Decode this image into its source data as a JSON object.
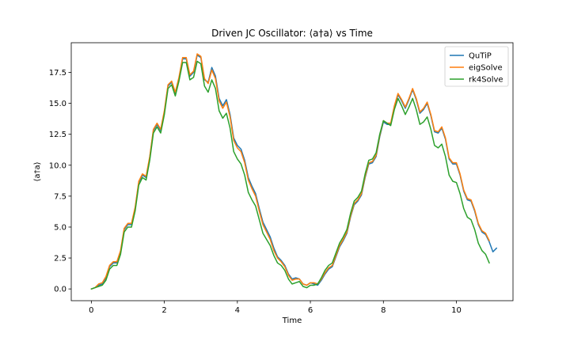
{
  "chart_data": {
    "type": "line",
    "title": "Driven JC Oscillator: ⟨a†a⟩ vs Time",
    "xlabel": "Time",
    "ylabel": "⟨a†a⟩",
    "xlim": [
      -0.55,
      11.55
    ],
    "ylim": [
      -0.95,
      19.9
    ],
    "xticks": [
      0,
      2,
      4,
      6,
      8,
      10
    ],
    "yticks": [
      0.0,
      2.5,
      5.0,
      7.5,
      10.0,
      12.5,
      15.0,
      17.5
    ],
    "xtick_labels": [
      "0",
      "2",
      "4",
      "6",
      "8",
      "10"
    ],
    "ytick_labels": [
      "0.0",
      "2.5",
      "5.0",
      "7.5",
      "10.0",
      "12.5",
      "15.0",
      "17.5"
    ],
    "grid": false,
    "legend_position": "top-right",
    "series": [
      {
        "name": "QuTiP",
        "color": "#1f77b4",
        "x": [
          0,
          0.1,
          0.2,
          0.3,
          0.4,
          0.5,
          0.6,
          0.7,
          0.8,
          0.9,
          1.0,
          1.1,
          1.2,
          1.3,
          1.4,
          1.5,
          1.6,
          1.7,
          1.8,
          1.9,
          2.0,
          2.1,
          2.2,
          2.3,
          2.4,
          2.5,
          2.6,
          2.7,
          2.8,
          2.9,
          3.0,
          3.1,
          3.2,
          3.3,
          3.4,
          3.5,
          3.6,
          3.7,
          3.8,
          3.9,
          4.0,
          4.1,
          4.2,
          4.3,
          4.4,
          4.5,
          4.6,
          4.7,
          4.8,
          4.9,
          5.0,
          5.1,
          5.2,
          5.3,
          5.4,
          5.5,
          5.6,
          5.7,
          5.8,
          5.9,
          6.0,
          6.1,
          6.2,
          6.3,
          6.4,
          6.5,
          6.6,
          6.7,
          6.8,
          6.9,
          7.0,
          7.1,
          7.2,
          7.3,
          7.4,
          7.5,
          7.6,
          7.7,
          7.8,
          7.9,
          8.0,
          8.1,
          8.2,
          8.3,
          8.4,
          8.5,
          8.6,
          8.7,
          8.8,
          8.9,
          9.0,
          9.1,
          9.2,
          9.3,
          9.4,
          9.5,
          9.6,
          9.7,
          9.8,
          9.9,
          10.0,
          10.1,
          10.2,
          10.3,
          10.4,
          10.5,
          10.6,
          10.7,
          10.8,
          10.9,
          11.0,
          11.1
        ],
        "y": [
          0.0,
          0.1,
          0.3,
          0.4,
          0.9,
          1.8,
          2.1,
          2.1,
          3.0,
          4.8,
          5.2,
          5.2,
          6.5,
          8.6,
          9.2,
          9.0,
          10.6,
          12.8,
          13.3,
          12.8,
          14.3,
          16.4,
          16.7,
          15.8,
          17.0,
          18.6,
          18.6,
          17.2,
          17.5,
          18.9,
          18.7,
          16.9,
          16.7,
          17.9,
          17.2,
          15.4,
          14.8,
          15.3,
          14.1,
          12.2,
          11.6,
          11.3,
          10.4,
          9.0,
          8.3,
          7.7,
          6.5,
          5.4,
          4.8,
          4.2,
          3.3,
          2.6,
          2.3,
          1.9,
          1.2,
          0.8,
          0.9,
          0.8,
          0.4,
          0.3,
          0.5,
          0.4,
          0.3,
          0.7,
          1.2,
          1.6,
          1.8,
          2.6,
          3.4,
          3.9,
          4.5,
          5.8,
          6.8,
          7.1,
          7.6,
          9.0,
          10.1,
          10.2,
          10.7,
          12.3,
          13.5,
          13.3,
          13.3,
          14.7,
          15.7,
          15.2,
          14.6,
          15.3,
          16.1,
          15.3,
          14.2,
          14.5,
          15.0,
          14.0,
          12.7,
          12.6,
          13.0,
          12.1,
          10.5,
          10.1,
          10.1,
          9.2,
          7.9,
          7.2,
          7.1,
          6.3,
          5.2,
          4.6,
          4.4,
          3.8,
          3.0,
          3.3
        ]
      },
      {
        "name": "eigSolve",
        "color": "#ff7f0e",
        "x": [
          0,
          0.1,
          0.2,
          0.3,
          0.4,
          0.5,
          0.6,
          0.7,
          0.8,
          0.9,
          1.0,
          1.1,
          1.2,
          1.3,
          1.4,
          1.5,
          1.6,
          1.7,
          1.8,
          1.9,
          2.0,
          2.1,
          2.2,
          2.3,
          2.4,
          2.5,
          2.6,
          2.7,
          2.8,
          2.9,
          3.0,
          3.1,
          3.2,
          3.3,
          3.4,
          3.5,
          3.6,
          3.7,
          3.8,
          3.9,
          4.0,
          4.1,
          4.2,
          4.3,
          4.4,
          4.5,
          4.6,
          4.7,
          4.8,
          4.9,
          5.0,
          5.1,
          5.2,
          5.3,
          5.4,
          5.5,
          5.6,
          5.7,
          5.8,
          5.9,
          6.0,
          6.1,
          6.2,
          6.3,
          6.4,
          6.5,
          6.6,
          6.7,
          6.8,
          6.9,
          7.0,
          7.1,
          7.2,
          7.3,
          7.4,
          7.5,
          7.6,
          7.7,
          7.8,
          7.9,
          8.0,
          8.1,
          8.2,
          8.3,
          8.4,
          8.5,
          8.6,
          8.7,
          8.8,
          8.9,
          9.0,
          9.1,
          9.2,
          9.3,
          9.4,
          9.5,
          9.6,
          9.7,
          9.8,
          9.9,
          10.0,
          10.1,
          10.2,
          10.3,
          10.4,
          10.5,
          10.6,
          10.7,
          10.8,
          10.9
        ],
        "y": [
          0.0,
          0.1,
          0.4,
          0.5,
          1.0,
          1.9,
          2.2,
          2.2,
          3.1,
          4.9,
          5.3,
          5.3,
          6.6,
          8.7,
          9.3,
          9.1,
          10.7,
          12.9,
          13.4,
          12.9,
          14.4,
          16.5,
          16.8,
          15.9,
          17.1,
          18.7,
          18.7,
          17.3,
          17.6,
          19.0,
          18.8,
          17.0,
          16.6,
          17.7,
          17.0,
          15.2,
          14.6,
          15.1,
          13.9,
          12.0,
          11.4,
          11.1,
          10.2,
          8.8,
          8.1,
          7.5,
          6.3,
          5.2,
          4.6,
          4.0,
          3.1,
          2.5,
          2.2,
          1.8,
          1.1,
          0.7,
          0.8,
          0.8,
          0.4,
          0.3,
          0.5,
          0.5,
          0.4,
          0.8,
          1.3,
          1.7,
          1.9,
          2.7,
          3.5,
          4.0,
          4.6,
          5.9,
          6.9,
          7.2,
          7.7,
          9.1,
          10.2,
          10.3,
          10.8,
          12.4,
          13.6,
          13.4,
          13.4,
          14.8,
          15.8,
          15.3,
          14.7,
          15.4,
          16.2,
          15.4,
          14.3,
          14.6,
          15.1,
          14.1,
          12.8,
          12.7,
          13.1,
          12.2,
          10.6,
          10.2,
          10.2,
          9.3,
          8.0,
          7.3,
          7.2,
          6.4,
          5.3,
          4.7,
          4.5,
          3.9
        ]
      },
      {
        "name": "rk4Solve",
        "color": "#2ca02c",
        "x": [
          0,
          0.1,
          0.2,
          0.3,
          0.4,
          0.5,
          0.6,
          0.7,
          0.8,
          0.9,
          1.0,
          1.1,
          1.2,
          1.3,
          1.4,
          1.5,
          1.6,
          1.7,
          1.8,
          1.9,
          2.0,
          2.1,
          2.2,
          2.3,
          2.4,
          2.5,
          2.6,
          2.7,
          2.8,
          2.9,
          3.0,
          3.1,
          3.2,
          3.3,
          3.4,
          3.5,
          3.6,
          3.7,
          3.8,
          3.9,
          4.0,
          4.1,
          4.2,
          4.3,
          4.4,
          4.5,
          4.6,
          4.7,
          4.8,
          4.9,
          5.0,
          5.1,
          5.2,
          5.3,
          5.4,
          5.5,
          5.6,
          5.7,
          5.8,
          5.9,
          6.0,
          6.1,
          6.2,
          6.3,
          6.4,
          6.5,
          6.6,
          6.7,
          6.8,
          6.9,
          7.0,
          7.1,
          7.2,
          7.3,
          7.4,
          7.5,
          7.6,
          7.7,
          7.8,
          7.9,
          8.0,
          8.1,
          8.2,
          8.3,
          8.4,
          8.5,
          8.6,
          8.7,
          8.8,
          8.9,
          9.0,
          9.1,
          9.2,
          9.3,
          9.4,
          9.5,
          9.6,
          9.7,
          9.8,
          9.9,
          10.0,
          10.1,
          10.2,
          10.3,
          10.4,
          10.5,
          10.6,
          10.7,
          10.8,
          10.9
        ],
        "y": [
          0.0,
          0.1,
          0.2,
          0.3,
          0.7,
          1.6,
          1.9,
          1.9,
          2.8,
          4.6,
          5.0,
          5.0,
          6.3,
          8.4,
          9.0,
          8.8,
          10.4,
          12.6,
          13.1,
          12.6,
          14.1,
          16.2,
          16.5,
          15.6,
          16.8,
          18.3,
          18.3,
          16.9,
          17.1,
          18.4,
          18.2,
          16.4,
          15.9,
          16.9,
          16.2,
          14.4,
          13.8,
          14.2,
          13.0,
          11.1,
          10.5,
          10.1,
          9.2,
          7.8,
          7.2,
          6.7,
          5.6,
          4.5,
          4.0,
          3.5,
          2.7,
          2.1,
          1.9,
          1.5,
          0.8,
          0.4,
          0.5,
          0.6,
          0.2,
          0.1,
          0.3,
          0.3,
          0.4,
          0.9,
          1.5,
          1.9,
          2.1,
          2.9,
          3.7,
          4.2,
          4.8,
          6.1,
          7.1,
          7.4,
          7.9,
          9.3,
          10.4,
          10.5,
          11.0,
          12.5,
          13.6,
          13.4,
          13.2,
          14.5,
          15.4,
          14.8,
          14.1,
          14.7,
          15.4,
          14.5,
          13.3,
          13.5,
          13.9,
          12.9,
          11.6,
          11.4,
          11.7,
          10.7,
          9.2,
          8.7,
          8.6,
          7.7,
          6.5,
          5.8,
          5.6,
          4.8,
          3.7,
          3.1,
          2.8,
          2.1
        ]
      }
    ]
  }
}
